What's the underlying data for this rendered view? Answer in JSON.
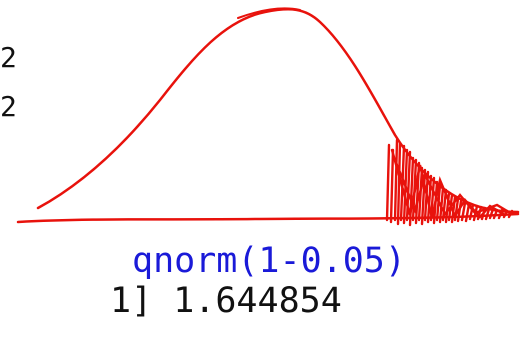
{
  "margin_digits": [
    "2",
    "2"
  ],
  "console": {
    "command": "qnorm(1-0.05)",
    "output": "1] 1.644854",
    "command_color": "#1a1ad8",
    "output_color": "#111111"
  },
  "annotation": {
    "ink_color": "#e8120c",
    "shape": "bell-curve",
    "shaded_region": "right-tail"
  }
}
